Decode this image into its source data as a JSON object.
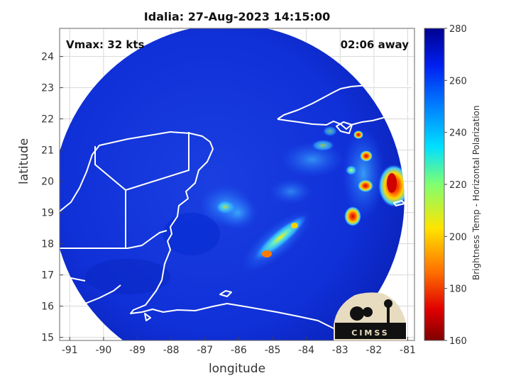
{
  "title": "Idalia: 27-Aug-2023 14:15:00",
  "vmax_label": "Vmax: 32 kts",
  "away_label": "02:06 away",
  "xlabel": "longitude",
  "ylabel": "latitude",
  "colorbar_label": "Brightness Temp - Horizontal Polarization",
  "logo_text": "CIMSS",
  "map": {
    "lon_range": [
      -91.3,
      -80.8
    ],
    "lat_range": [
      14.9,
      24.9
    ],
    "x_ticks": [
      "-91",
      "-90",
      "-89",
      "-88",
      "-87",
      "-86",
      "-85",
      "-84",
      "-83",
      "-82",
      "-81"
    ],
    "y_ticks": [
      "24",
      "23",
      "22",
      "21",
      "20",
      "19",
      "18",
      "17",
      "16",
      "15"
    ],
    "grid": true,
    "swath_center": {
      "lon": -86.3,
      "lat": 19.4
    },
    "swath_radius_deg": 5.2,
    "colorbar_range": [
      160,
      280
    ],
    "colorbar_ticks": [
      "280",
      "260",
      "240",
      "220",
      "200",
      "180",
      "160"
    ]
  },
  "colors": {
    "cold": "#7f0000",
    "warm": "#00008f",
    "background": "#ffffff"
  }
}
